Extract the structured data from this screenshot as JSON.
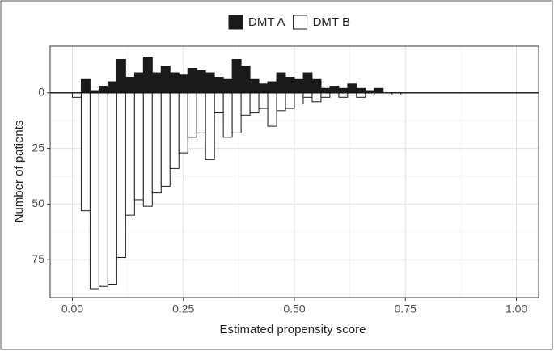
{
  "chart_data": {
    "type": "histogram",
    "x_label": "Estimated propensity score",
    "y_label": "Number of patients",
    "bins": [
      0,
      0.02,
      0.04,
      0.06,
      0.08,
      0.1,
      0.12,
      0.14,
      0.16,
      0.18,
      0.2,
      0.22,
      0.24,
      0.26,
      0.28,
      0.3,
      0.32,
      0.34,
      0.36,
      0.38,
      0.4,
      0.42,
      0.44,
      0.46,
      0.48,
      0.5,
      0.52,
      0.54,
      0.56,
      0.58,
      0.6,
      0.62,
      0.64,
      0.66,
      0.68,
      0.7,
      0.72,
      0.74
    ],
    "series": [
      {
        "name": "DMT A",
        "color": "#1a1a1a",
        "values": [
          0,
          6,
          1,
          3,
          5,
          15,
          7,
          9,
          16,
          9,
          12,
          9,
          8,
          11,
          10,
          9,
          7,
          6,
          15,
          12,
          6,
          4,
          5,
          9,
          7,
          6,
          9,
          6,
          2,
          3,
          2,
          4,
          2,
          1,
          2,
          0,
          0
        ]
      },
      {
        "name": "DMT B",
        "color": "#ffffff",
        "values": [
          -2,
          -53,
          -88,
          -87,
          -86,
          -74,
          -55,
          -48,
          -51,
          -45,
          -42,
          -34,
          -27,
          -20,
          -18,
          -30,
          -9,
          -20,
          -18,
          -10,
          -9,
          -7,
          -15,
          -8,
          -7,
          -5,
          -2,
          -4,
          -2,
          -1,
          -2,
          -1,
          -2,
          -1,
          0,
          0,
          -1
        ]
      }
    ],
    "xlim": [
      -0.05,
      1.05
    ],
    "ylim": [
      -92,
      21
    ],
    "xticks": [
      {
        "value": 0,
        "label": "0.00"
      },
      {
        "value": 0.25,
        "label": "0.25"
      },
      {
        "value": 0.5,
        "label": "0.50"
      },
      {
        "value": 0.75,
        "label": "0.75"
      },
      {
        "value": 1,
        "label": "1.00"
      }
    ],
    "yticks": [
      0,
      {
        "value": -25,
        "label": "25"
      },
      {
        "value": -50,
        "label": "50"
      },
      {
        "value": -75,
        "label": "75"
      }
    ],
    "grid": true,
    "legend": "top"
  }
}
